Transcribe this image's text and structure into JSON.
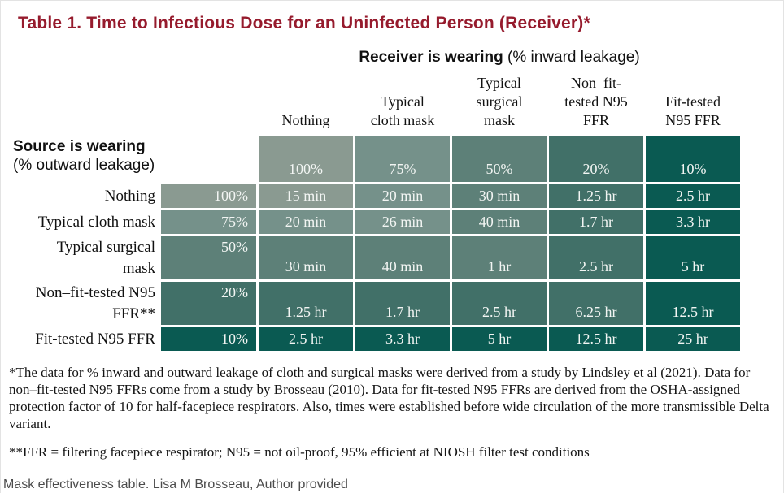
{
  "page": {
    "title": "Table 1. Time to Infectious Dose for an Uninfected Person (Receiver)*",
    "footnote1": "*The data for % inward and outward leakage of cloth and surgical masks were derived from a study by Lindsley et al (2021). Data for non–fit-tested N95 FFRs come from a study by Brosseau (2010). Data for fit-tested N95 FFRs are derived from the OSHA-assigned protection factor of 10 for half-facepiece respirators. Also, times were established before wide circulation of the more transmissible Delta variant.",
    "footnote2": "**FFR = filtering facepiece respirator; N95 = not oil-proof, 95% efficient at NIOSH filter test conditions",
    "caption": "Mask effectiveness table. Lisa M Brosseau, Author provided"
  },
  "receiver_header": {
    "bold": "Receiver is wearing",
    "note": "(% inward leakage)"
  },
  "source_header": {
    "bold": "Source is wearing",
    "note": "(% outward leakage)"
  },
  "colors": {
    "title_red": "#961B2D",
    "cell_text": "#F2F5F3",
    "shades": [
      "#8A9A91",
      "#75918A",
      "#5D8078",
      "#417068",
      "#0A5A52"
    ]
  },
  "chart_data": {
    "type": "table",
    "title": "Table 1. Time to Infectious Dose for an Uninfected Person (Receiver)*",
    "column_group_label": "Receiver is wearing (% inward leakage)",
    "row_group_label": "Source is wearing (% outward leakage)",
    "columns": [
      {
        "label": "Nothing",
        "lines": [
          "Nothing"
        ],
        "inward_leakage": "100%"
      },
      {
        "label": "Typical cloth mask",
        "lines": [
          "Typical",
          "cloth mask"
        ],
        "inward_leakage": "75%"
      },
      {
        "label": "Typical surgical mask",
        "lines": [
          "Typical",
          "surgical",
          "mask"
        ],
        "inward_leakage": "50%"
      },
      {
        "label": "Non–fit-tested N95 FFR",
        "lines": [
          "Non–fit-",
          "tested N95",
          "FFR"
        ],
        "inward_leakage": "20%"
      },
      {
        "label": "Fit-tested N95 FFR",
        "lines": [
          "Fit-tested",
          "N95 FFR"
        ],
        "inward_leakage": "10%"
      }
    ],
    "rows": [
      {
        "label": "Nothing",
        "lines": [
          "Nothing"
        ],
        "outward_leakage": "100%",
        "values": [
          "15 min",
          "20 min",
          "30 min",
          "1.25 hr",
          "2.5 hr"
        ]
      },
      {
        "label": "Typical cloth mask",
        "lines": [
          "Typical cloth mask"
        ],
        "outward_leakage": "75%",
        "values": [
          "20 min",
          "26 min",
          "40 min",
          "1.7 hr",
          "3.3 hr"
        ]
      },
      {
        "label": "Typical surgical mask",
        "lines": [
          "Typical surgical",
          "mask"
        ],
        "outward_leakage": "50%",
        "values": [
          "30 min",
          "40 min",
          "1 hr",
          "2.5 hr",
          "5 hr"
        ]
      },
      {
        "label": "Non–fit-tested N95 FFR**",
        "lines": [
          "Non–fit-tested N95",
          "FFR**"
        ],
        "outward_leakage": "20%",
        "values": [
          "1.25 hr",
          "1.7 hr",
          "2.5 hr",
          "6.25 hr",
          "12.5 hr"
        ]
      },
      {
        "label": "Fit-tested N95 FFR",
        "lines": [
          "Fit-tested N95 FFR"
        ],
        "outward_leakage": "10%",
        "values": [
          "2.5 hr",
          "3.3 hr",
          "5 hr",
          "12.5 hr",
          "25 hr"
        ]
      }
    ]
  }
}
